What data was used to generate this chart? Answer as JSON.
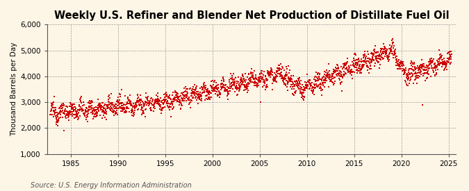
{
  "title": "Weekly U.S. Refiner and Blender Net Production of Distillate Fuel Oil",
  "ylabel": "Thousand Barrels per Day",
  "source": "Source: U.S. Energy Information Administration",
  "background_color": "#FDF5E6",
  "plot_bg_color": "#FDF5E6",
  "line_color": "#CC0000",
  "ylim": [
    1000,
    6000
  ],
  "yticks": [
    1000,
    2000,
    3000,
    4000,
    5000,
    6000
  ],
  "ytick_labels": [
    "1,000",
    "2,000",
    "3,000",
    "4,000",
    "5,000",
    "6,000"
  ],
  "xticks": [
    1985,
    1990,
    1995,
    2000,
    2005,
    2010,
    2015,
    2020,
    2025
  ],
  "start_year": 1982.5,
  "end_year": 2025.8,
  "title_fontsize": 10.5,
  "label_fontsize": 7.5,
  "tick_fontsize": 7.5,
  "source_fontsize": 7.0
}
